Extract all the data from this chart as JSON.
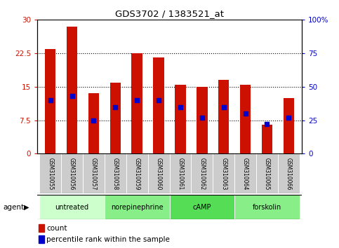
{
  "title": "GDS3702 / 1383521_at",
  "samples": [
    "GSM310055",
    "GSM310056",
    "GSM310057",
    "GSM310058",
    "GSM310059",
    "GSM310060",
    "GSM310061",
    "GSM310062",
    "GSM310063",
    "GSM310064",
    "GSM310065",
    "GSM310066"
  ],
  "counts": [
    23.5,
    28.5,
    13.5,
    16.0,
    22.5,
    21.5,
    15.5,
    15.0,
    16.5,
    15.5,
    6.5,
    12.5
  ],
  "percentile_ranks": [
    40.0,
    43.0,
    25.0,
    35.0,
    40.0,
    40.0,
    35.0,
    27.0,
    35.0,
    30.0,
    22.0,
    27.0
  ],
  "bar_color": "#cc1100",
  "dot_color": "#0000cc",
  "ylim_left": [
    0,
    30
  ],
  "ylim_right": [
    0,
    100
  ],
  "yticks_left": [
    0,
    7.5,
    15,
    22.5,
    30
  ],
  "yticks_right": [
    0,
    25,
    50,
    75,
    100
  ],
  "ytick_labels_left": [
    "0",
    "7.5",
    "15",
    "22.5",
    "30"
  ],
  "ytick_labels_right": [
    "0",
    "25",
    "50",
    "75",
    "100%"
  ],
  "groups": [
    {
      "label": "untreated",
      "start": 0,
      "end": 3,
      "color": "#ccffcc"
    },
    {
      "label": "norepinephrine",
      "start": 3,
      "end": 6,
      "color": "#88ee88"
    },
    {
      "label": "cAMP",
      "start": 6,
      "end": 9,
      "color": "#55dd55"
    },
    {
      "label": "forskolin",
      "start": 9,
      "end": 12,
      "color": "#88ee88"
    }
  ],
  "agent_label": "agent",
  "legend_count_label": "count",
  "legend_percentile_label": "percentile rank within the sample",
  "bar_width": 0.5,
  "background_color": "#ffffff",
  "sample_cell_color": "#cccccc",
  "figsize": [
    4.83,
    3.54
  ],
  "dpi": 100
}
